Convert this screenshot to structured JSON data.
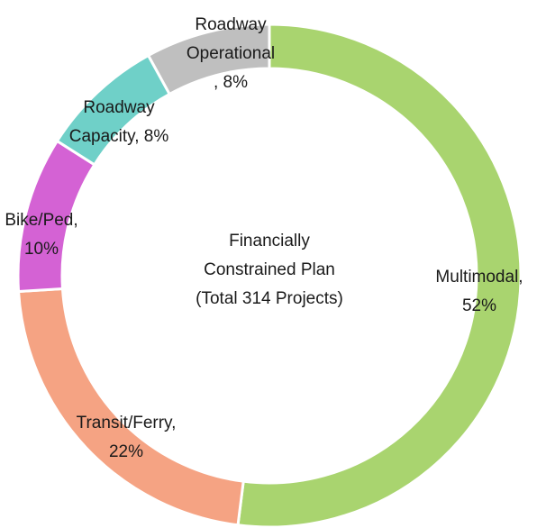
{
  "chart_data": {
    "type": "donut",
    "center_text": [
      "Financially",
      "Constrained Plan",
      "(Total 314 Projects)"
    ],
    "labels": [
      [
        "Multimodal,",
        "52%"
      ],
      [
        "Transit/Ferry,",
        "22%"
      ],
      [
        "Bike/Ped,",
        "10%"
      ],
      [
        "Roadway",
        "Capacity, 8%"
      ],
      [
        "Roadway",
        "Operational",
        ", 8%"
      ]
    ],
    "values": [
      52,
      22,
      10,
      8,
      8
    ],
    "colors": [
      "#a9d46f",
      "#f5a383",
      "#d462d4",
      "#6fd0c8",
      "#bfbfbf"
    ]
  }
}
